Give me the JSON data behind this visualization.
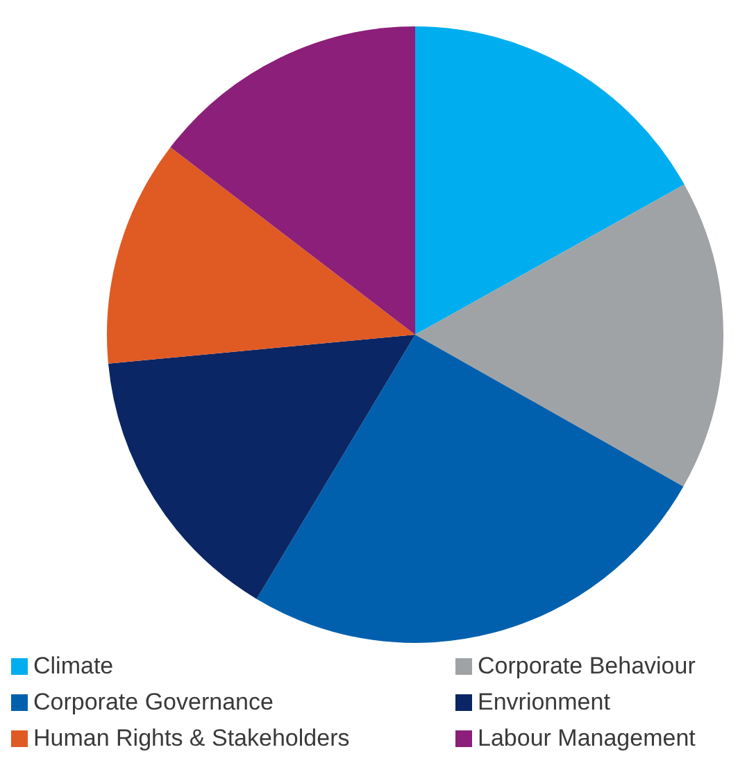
{
  "chart_data": {
    "type": "pie",
    "categories": [
      "Climate",
      "Corporate Behaviour",
      "Corporate Governance",
      "Envrionment",
      "Human Rights & Stakeholders",
      "Labour Management"
    ],
    "values": [
      16.9,
      16.3,
      25.4,
      14.9,
      11.9,
      14.6
    ],
    "colors": [
      "#00aeef",
      "#a0a3a6",
      "#0060ad",
      "#0b2664",
      "#e05a24",
      "#8b1f79"
    ],
    "legend": "bottom"
  }
}
